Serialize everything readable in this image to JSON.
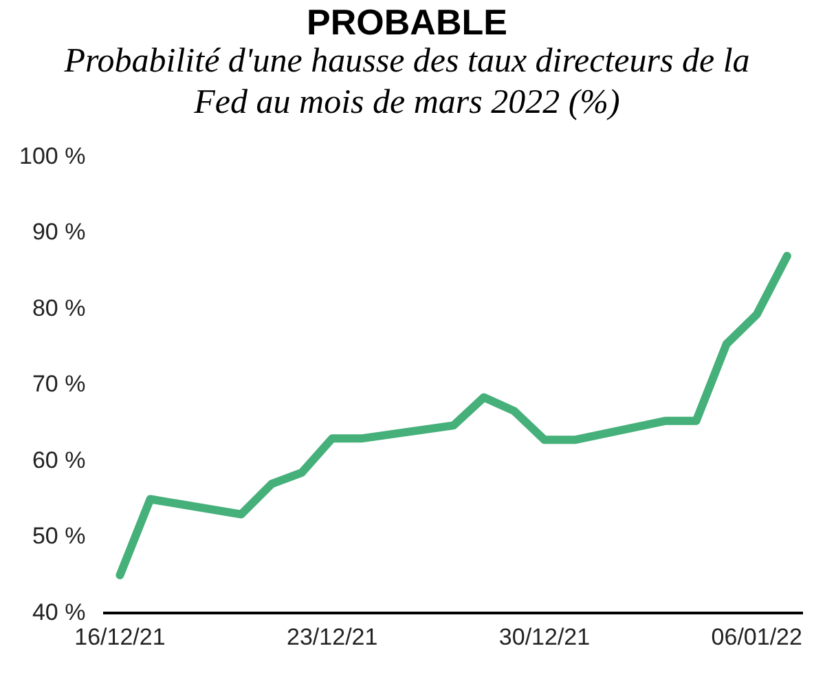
{
  "chart_data": {
    "type": "line",
    "title": "PROBABLE",
    "subtitle": "Probabilité d'une hausse des taux directeurs de la Fed au mois de mars 2022 (%)",
    "x": [
      "2021-12-16",
      "2021-12-17",
      "2021-12-20",
      "2021-12-21",
      "2021-12-22",
      "2021-12-23",
      "2021-12-24",
      "2021-12-27",
      "2021-12-28",
      "2021-12-29",
      "2021-12-30",
      "2021-12-31",
      "2022-01-03",
      "2022-01-04",
      "2022-01-05",
      "2022-01-06",
      "2022-01-07"
    ],
    "series": [
      {
        "color": "#46b07a",
        "values": [
          45,
          55,
          53,
          57,
          58.5,
          63,
          63,
          64.7,
          68.4,
          66.6,
          62.8,
          62.8,
          65.3,
          65.3,
          75.4,
          79.3,
          87
        ]
      }
    ],
    "xlim": [
      "2021-12-15T12:00",
      "2022-01-07T12:00"
    ],
    "xticks": [
      {
        "value": "2021-12-16",
        "label": "16/12/21"
      },
      {
        "value": "2021-12-23",
        "label": "23/12/21"
      },
      {
        "value": "2021-12-30",
        "label": "30/12/21"
      },
      {
        "value": "2022-01-06",
        "label": "06/01/22"
      }
    ],
    "ylim": [
      40,
      100
    ],
    "yticks": [
      {
        "value": 40,
        "label": "40 %"
      },
      {
        "value": 50,
        "label": "50 %"
      },
      {
        "value": 60,
        "label": "60 %"
      },
      {
        "value": 70,
        "label": "70 %"
      },
      {
        "value": 80,
        "label": "80 %"
      },
      {
        "value": 90,
        "label": "90 %"
      },
      {
        "value": 100,
        "label": "100 %"
      }
    ],
    "grid": false,
    "legend": false,
    "marker": "none",
    "line_style": "solid"
  }
}
